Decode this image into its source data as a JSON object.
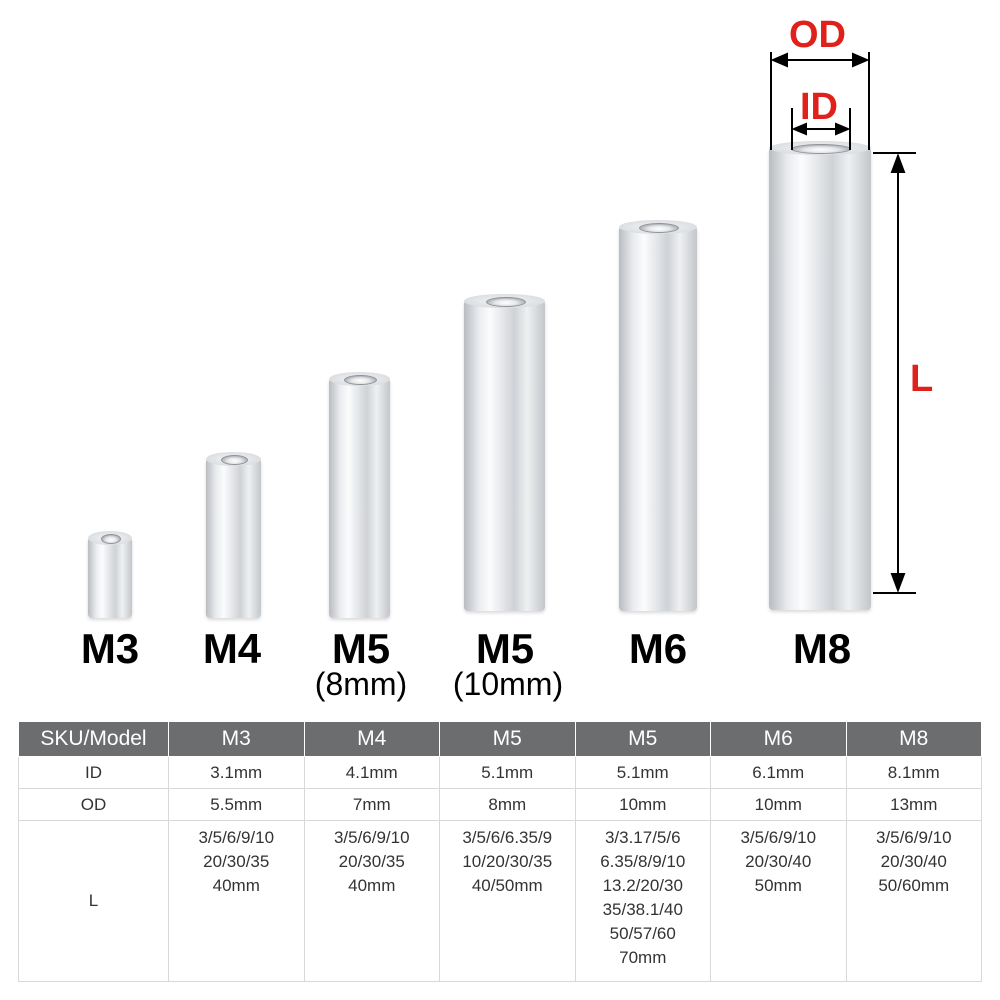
{
  "dimensions": {
    "od": "OD",
    "id": "ID",
    "l": "L"
  },
  "models": [
    {
      "name": "M3",
      "sub": ""
    },
    {
      "name": "M4",
      "sub": ""
    },
    {
      "name": "M5",
      "sub": "(8mm)"
    },
    {
      "name": "M5",
      "sub": "(10mm)"
    },
    {
      "name": "M6",
      "sub": ""
    },
    {
      "name": "M8",
      "sub": ""
    }
  ],
  "table": {
    "header": [
      "SKU/Model",
      "M3",
      "M4",
      "M5",
      "M5",
      "M6",
      "M8"
    ],
    "rows": {
      "id": {
        "label": "ID",
        "values": [
          "3.1mm",
          "4.1mm",
          "5.1mm",
          "5.1mm",
          "6.1mm",
          "8.1mm"
        ]
      },
      "od": {
        "label": "OD",
        "values": [
          "5.5mm",
          "7mm",
          "8mm",
          "10mm",
          "10mm",
          "13mm"
        ]
      },
      "l": {
        "label": "L",
        "values": [
          [
            "3/5/6/9/10",
            "20/30/35",
            "40mm"
          ],
          [
            "3/5/6/9/10",
            "20/30/35",
            "40mm"
          ],
          [
            "3/5/6/6.35/9",
            "10/20/30/35",
            "40/50mm"
          ],
          [
            "3/3.17/5/6",
            "6.35/8/9/10",
            "13.2/20/30",
            "35/38.1/40",
            "50/57/60",
            "70mm"
          ],
          [
            "3/5/6/9/10",
            "20/30/40",
            "50mm"
          ],
          [
            "3/5/6/9/10",
            "20/30/40",
            "50/60mm"
          ]
        ]
      }
    }
  },
  "colors": {
    "dimension_red": "#e0201b",
    "table_header": "#6c6d6f"
  }
}
